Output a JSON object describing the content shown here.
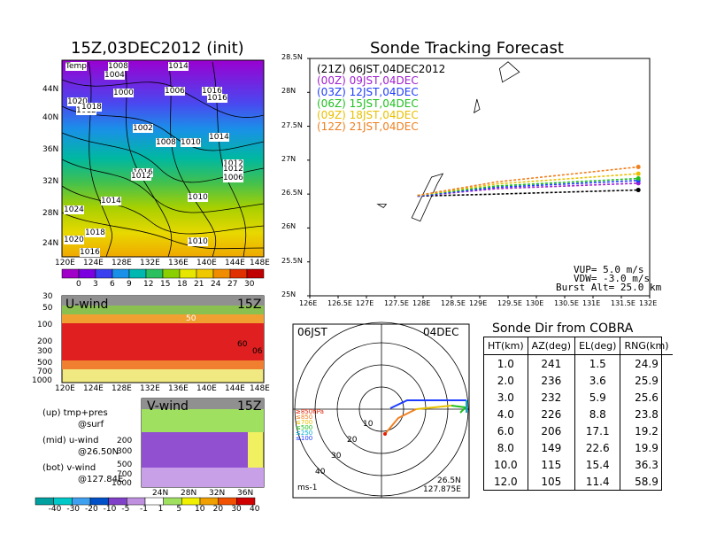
{
  "map_panel": {
    "title": "15Z,03DEC2012 (init)",
    "var_label": "Temp",
    "lat_ticks": [
      "44N",
      "40N",
      "36N",
      "32N",
      "28N",
      "24N"
    ],
    "lon_ticks": [
      "120E",
      "124E",
      "128E",
      "132E",
      "136E",
      "140E",
      "144E",
      "148E"
    ],
    "pressure_labels": [
      "1008",
      "1014",
      "1004",
      "1000",
      "1006",
      "1016",
      "1020",
      "1012",
      "1018",
      "1016",
      "1002",
      "1008",
      "1010",
      "1014",
      "1012",
      "1006",
      "1012",
      "1014",
      "1010",
      "1024",
      "1018",
      "1020",
      "1016",
      "1010",
      "1016",
      "1012"
    ],
    "colorbar_labels": [
      "0",
      "3",
      "6",
      "9",
      "12",
      "15",
      "18",
      "21",
      "24",
      "27",
      "30"
    ],
    "colorbar_colors": [
      "#a000c8",
      "#7a00e0",
      "#3a40f0",
      "#1a90e8",
      "#00b8b0",
      "#2ac060",
      "#8ad000",
      "#e6e600",
      "#f0c800",
      "#f08c00",
      "#e03000",
      "#c00000"
    ]
  },
  "uwind_panel": {
    "title": "U-wind",
    "time": "15Z",
    "y_ticks": [
      "30",
      "50",
      "100",
      "200",
      "300",
      "500",
      "700",
      "1000"
    ],
    "x_ticks": [
      "120E",
      "124E",
      "128E",
      "132E",
      "136E",
      "140E",
      "144E",
      "148E"
    ],
    "contour_labels": [
      "50",
      "06",
      "60"
    ]
  },
  "vwind_panel": {
    "title": "V-wind",
    "time": "15Z",
    "y_ticks": [
      "200",
      "300",
      "500",
      "700",
      "1000"
    ],
    "x_ticks": [
      "24N",
      "28N",
      "32N",
      "36N"
    ],
    "colorbar_labels": [
      "-40",
      "-30",
      "-20",
      "-10",
      "-5",
      "-1",
      "1",
      "5",
      "10",
      "20",
      "30",
      "40"
    ],
    "colorbar_colors": [
      "#00a0a0",
      "#00c8c8",
      "#40a0f0",
      "#0050c8",
      "#8040c8",
      "#c090e0",
      "#ffffff",
      "#a0e060",
      "#f0f000",
      "#f0a000",
      "#f05000",
      "#d00000"
    ]
  },
  "legend_text": {
    "line1": "(up) tmp+pres",
    "line2": "@surf",
    "line3": "(mid) u-wind",
    "line4": "@26.50N",
    "line5": "(bot) v-wind",
    "line6": "@127.84E"
  },
  "chart_data": [
    {
      "type": "line",
      "title": "Sonde Tracking Forecast",
      "xlabel": "",
      "ylabel": "",
      "xlim": [
        126,
        132
      ],
      "ylim": [
        25,
        28.5
      ],
      "x_ticks": [
        "126E",
        "126.5E",
        "127E",
        "127.5E",
        "128E",
        "128.5E",
        "129E",
        "129.5E",
        "130E",
        "130.5E",
        "131E",
        "131.5E",
        "132E"
      ],
      "y_ticks": [
        "25N",
        "25.5N",
        "26N",
        "26.5N",
        "27N",
        "27.5N",
        "28N",
        "28.5N"
      ],
      "series": [
        {
          "name": "(21Z) 06JST,04DEC2012",
          "color": "#000000",
          "x": [
            127.9,
            129.3,
            131.8
          ],
          "y": [
            26.47,
            26.5,
            26.56
          ]
        },
        {
          "name": "(00Z) 09JST,04DEC",
          "color": "#a020d0",
          "x": [
            127.9,
            129.3,
            131.8
          ],
          "y": [
            26.47,
            26.58,
            26.66
          ]
        },
        {
          "name": "(03Z) 12JST,04DEC",
          "color": "#1e3cff",
          "x": [
            127.9,
            129.3,
            131.8
          ],
          "y": [
            26.47,
            26.6,
            26.7
          ]
        },
        {
          "name": "(06Z) 15JST,04DEC",
          "color": "#20c020",
          "x": [
            127.9,
            129.3,
            131.8
          ],
          "y": [
            26.48,
            26.62,
            26.73
          ]
        },
        {
          "name": "(09Z) 18JST,04DEC",
          "color": "#e8c000",
          "x": [
            127.9,
            129.3,
            131.8
          ],
          "y": [
            26.48,
            26.65,
            26.8
          ]
        },
        {
          "name": "(12Z) 21JST,04DEC",
          "color": "#f08020",
          "x": [
            127.9,
            129.3,
            131.8
          ],
          "y": [
            26.48,
            26.68,
            26.9
          ]
        }
      ],
      "annotations": [
        "VUP= 5.0 m/s",
        "VDW= -3.0 m/s",
        "Burst Alt= 25.0 km"
      ]
    },
    {
      "type": "table",
      "title": "Sonde Dir from COBRA",
      "columns": [
        "HT(km)",
        "AZ(deg)",
        "EL(deg)",
        "RNG(km)"
      ],
      "rows": [
        [
          "1.0",
          "241",
          "1.5",
          "24.9"
        ],
        [
          "2.0",
          "236",
          "3.6",
          "25.9"
        ],
        [
          "3.0",
          "232",
          "5.9",
          "25.6"
        ],
        [
          "4.0",
          "226",
          "8.8",
          "23.8"
        ],
        [
          "6.0",
          "206",
          "17.1",
          "19.2"
        ],
        [
          "8.0",
          "149",
          "22.6",
          "19.9"
        ],
        [
          "10.0",
          "115",
          "15.4",
          "36.3"
        ],
        [
          "12.0",
          "105",
          "11.4",
          "58.9"
        ]
      ]
    }
  ],
  "polar_panel": {
    "time_label": "06JST",
    "date_label": "04DEC",
    "ring_labels": [
      "10",
      "20",
      "30",
      "40"
    ],
    "level_legend": [
      "≥850hPa",
      "≤850",
      "≤700",
      "≤500",
      "≤250",
      "≤100"
    ],
    "level_colors": [
      "#e02000",
      "#f08020",
      "#e8c000",
      "#20c020",
      "#00b0d0",
      "#1e3cff"
    ],
    "unit": "ms-1",
    "lat_label": "26.5N",
    "lon_label": "127.875E"
  }
}
